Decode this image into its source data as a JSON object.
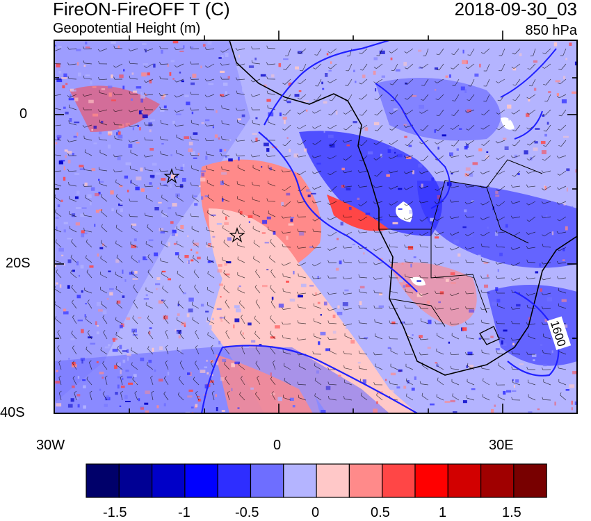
{
  "header": {
    "title_left": "FireON-FireOFF T (C)",
    "subtitle_left": "Geopotential Height (m)",
    "title_right": "2018-09-30_03",
    "subtitle_right": "850 hPa"
  },
  "map": {
    "lat_labels": [
      "0",
      "20S",
      "40S"
    ],
    "lon_labels": [
      "30W",
      "0",
      "30E"
    ],
    "contour_label": "1600",
    "extent": {
      "lon": [
        -30,
        40
      ],
      "lat": [
        -40,
        10
      ]
    }
  },
  "colorbar": {
    "colors": [
      "#00006a",
      "#000094",
      "#0000c8",
      "#0000ff",
      "#2e2eff",
      "#6e6eff",
      "#b4b4ff",
      "#ffc8c8",
      "#ff8a8a",
      "#ff4646",
      "#ff0000",
      "#d20000",
      "#a00000",
      "#780000"
    ],
    "labels": [
      "-1.5",
      "-1",
      "-0.5",
      "0",
      "0.5",
      "1",
      "1.5"
    ]
  },
  "style": {
    "land_blue": "#2020ff",
    "pink": "#ffc8c8",
    "light_blue": "#b4b4ff",
    "red": "#ff4646",
    "dark_blue": "#0000c8"
  }
}
